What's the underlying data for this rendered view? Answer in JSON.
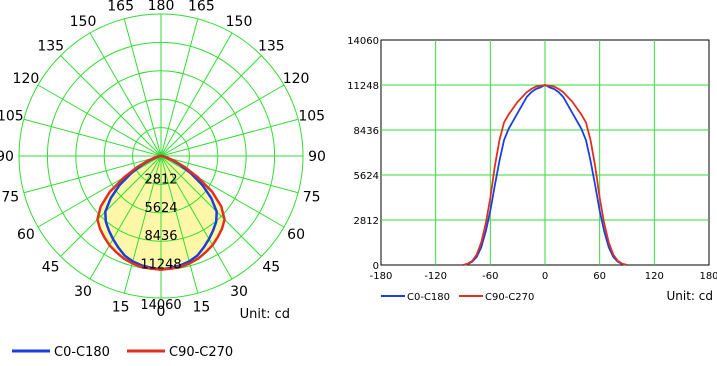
{
  "colors": {
    "grid": "#33dd33",
    "c0": "#1a3fe0",
    "c90": "#e03020",
    "fill": "#fff7a8"
  },
  "chart_data": [
    {
      "type": "polar",
      "unit_label": "Unit: cd",
      "angle_labels_left": [
        "180",
        "165",
        "150",
        "135",
        "120",
        "105",
        "90",
        "75",
        "60",
        "45",
        "30",
        "15",
        "0"
      ],
      "angle_labels_right": [
        "180",
        "165",
        "150",
        "135",
        "120",
        "105",
        "90",
        "75",
        "60",
        "45",
        "30",
        "15",
        "0"
      ],
      "radial_labels": [
        "2812",
        "5624",
        "8436",
        "11248",
        "14060"
      ],
      "rmax": 14060,
      "series": [
        {
          "name": "C0-C180",
          "color_key": "c0",
          "angles": [
            0,
            5,
            10,
            15,
            20,
            25,
            30,
            35,
            40,
            45,
            50,
            55,
            60,
            65,
            70,
            75,
            80,
            85,
            90
          ],
          "values": [
            11248,
            11100,
            11000,
            10800,
            10500,
            10000,
            9500,
            9000,
            8500,
            7800,
            6500,
            5000,
            3400,
            2100,
            1100,
            500,
            200,
            60,
            0
          ]
        },
        {
          "name": "C90-C270",
          "color_key": "c90",
          "angles": [
            0,
            5,
            10,
            15,
            20,
            25,
            30,
            35,
            40,
            45,
            50,
            55,
            60,
            65,
            70,
            75,
            80,
            85,
            90
          ],
          "values": [
            11248,
            11200,
            11150,
            11000,
            10800,
            10500,
            10200,
            9800,
            9400,
            8900,
            7800,
            6200,
            4200,
            2600,
            1400,
            650,
            250,
            80,
            0
          ]
        }
      ],
      "legend": [
        {
          "name": "C0-C180",
          "color_key": "c0"
        },
        {
          "name": "C90-C270",
          "color_key": "c90"
        }
      ]
    },
    {
      "type": "line",
      "unit_label": "Unit: cd",
      "x_ticks": [
        "-180",
        "-120",
        "-60",
        "0",
        "60",
        "120",
        "180"
      ],
      "y_ticks": [
        "0",
        "2812",
        "5624",
        "8436",
        "11248",
        "14060"
      ],
      "xlim": [
        -180,
        180
      ],
      "ylim": [
        0,
        14060
      ],
      "series": [
        {
          "name": "C0-C180",
          "color_key": "c0",
          "x": [
            -90,
            -85,
            -80,
            -75,
            -70,
            -65,
            -60,
            -55,
            -50,
            -45,
            -40,
            -35,
            -30,
            -25,
            -20,
            -15,
            -10,
            -5,
            0,
            5,
            10,
            15,
            20,
            25,
            30,
            35,
            40,
            45,
            50,
            55,
            60,
            65,
            70,
            75,
            80,
            85,
            90
          ],
          "y": [
            0,
            60,
            200,
            500,
            1100,
            2100,
            3400,
            5000,
            6500,
            7800,
            8500,
            9000,
            9500,
            10000,
            10500,
            10800,
            11000,
            11100,
            11248,
            11100,
            11000,
            10800,
            10500,
            10000,
            9500,
            9000,
            8500,
            7800,
            6500,
            5000,
            3400,
            2100,
            1100,
            500,
            200,
            60,
            0
          ]
        },
        {
          "name": "C90-C270",
          "color_key": "c90",
          "x": [
            -90,
            -85,
            -80,
            -75,
            -70,
            -65,
            -60,
            -55,
            -50,
            -45,
            -40,
            -35,
            -30,
            -25,
            -20,
            -15,
            -10,
            -5,
            0,
            5,
            10,
            15,
            20,
            25,
            30,
            35,
            40,
            45,
            50,
            55,
            60,
            65,
            70,
            75,
            80,
            85,
            90
          ],
          "y": [
            0,
            80,
            250,
            650,
            1400,
            2600,
            4200,
            6200,
            7800,
            8900,
            9400,
            9800,
            10200,
            10500,
            10800,
            11000,
            11150,
            11200,
            11248,
            11200,
            11150,
            11000,
            10800,
            10500,
            10200,
            9800,
            9400,
            8900,
            7800,
            6200,
            4200,
            2600,
            1400,
            650,
            250,
            80,
            0
          ]
        }
      ],
      "legend": [
        {
          "name": "C0-C180",
          "color_key": "c0"
        },
        {
          "name": "C90-C270",
          "color_key": "c90"
        }
      ]
    }
  ]
}
